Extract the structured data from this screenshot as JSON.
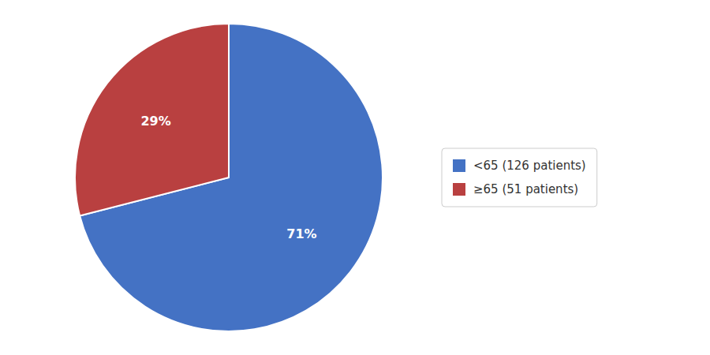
{
  "chart_data": {
    "type": "pie",
    "categories": [
      "<65 (126 patients)",
      "≥65 (51 patients)"
    ],
    "values": [
      71,
      29
    ],
    "value_labels": [
      "71%",
      "29%"
    ],
    "colors": [
      "#4472C4",
      "#B94040"
    ],
    "data_labels": true,
    "legend": "right"
  }
}
